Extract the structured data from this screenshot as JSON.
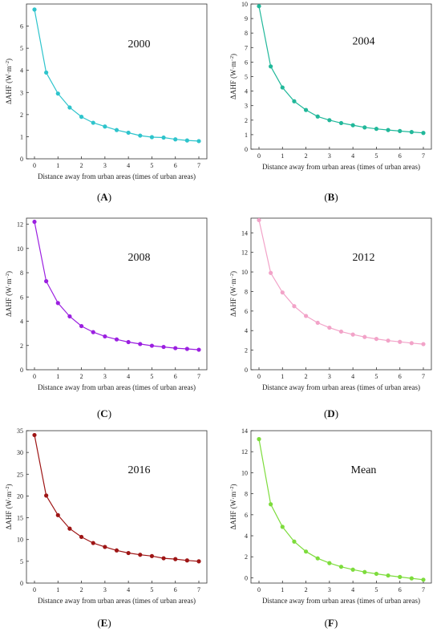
{
  "figure": {
    "ylabel_main": "ΔAHF (W·m",
    "ylabel_sup": "−2",
    "ylabel_close": ")"
  },
  "chart_data": [
    {
      "type": "line",
      "panel_label": "A",
      "annotation": "2000",
      "xlabel": "Distance away from urban areas (times of urban areas)",
      "ylabel": "ΔAHF (W·m−2)",
      "color": "#2ec4cc",
      "xlim": [
        0,
        7
      ],
      "ylim": [
        0,
        7
      ],
      "yticks": [
        0,
        1,
        2,
        3,
        4,
        5,
        6
      ],
      "xticks": [
        0,
        1,
        2,
        3,
        4,
        5,
        6,
        7
      ],
      "grid": false,
      "x": [
        0,
        0.5,
        1,
        1.5,
        2,
        2.5,
        3,
        3.5,
        4,
        4.5,
        5,
        5.5,
        6,
        6.5,
        7
      ],
      "y": [
        6.75,
        3.9,
        2.95,
        2.32,
        1.9,
        1.63,
        1.46,
        1.3,
        1.18,
        1.05,
        0.98,
        0.96,
        0.88,
        0.83,
        0.8
      ]
    },
    {
      "type": "line",
      "panel_label": "B",
      "annotation": "2004",
      "xlabel": "Distance away from urban areas (times of urban areas)",
      "ylabel": "ΔAHF (W·m−2)",
      "color": "#21b89a",
      "xlim": [
        0,
        7
      ],
      "ylim": [
        0,
        10
      ],
      "yticks": [
        0,
        1,
        2,
        3,
        4,
        5,
        6,
        7,
        8,
        9,
        10
      ],
      "xticks": [
        0,
        1,
        2,
        3,
        4,
        5,
        6,
        7
      ],
      "grid": false,
      "x": [
        0,
        0.5,
        1,
        1.5,
        2,
        2.5,
        3,
        3.5,
        4,
        4.5,
        5,
        5.5,
        6,
        6.5,
        7
      ],
      "y": [
        9.85,
        5.7,
        4.25,
        3.3,
        2.7,
        2.25,
        2.0,
        1.8,
        1.65,
        1.5,
        1.4,
        1.32,
        1.25,
        1.18,
        1.12
      ]
    },
    {
      "type": "line",
      "panel_label": "C",
      "annotation": "2008",
      "xlabel": "Distance away from urban areas (times of urban areas)",
      "ylabel": "ΔAHF (W·m−2)",
      "color": "#9b1fe0",
      "xlim": [
        0,
        7
      ],
      "ylim": [
        0,
        12.5
      ],
      "yticks": [
        0,
        2,
        4,
        6,
        8,
        10,
        12
      ],
      "xticks": [
        0,
        1,
        2,
        3,
        4,
        5,
        6,
        7
      ],
      "grid": false,
      "x": [
        0,
        0.5,
        1,
        1.5,
        2,
        2.5,
        3,
        3.5,
        4,
        4.5,
        5,
        5.5,
        6,
        6.5,
        7
      ],
      "y": [
        12.2,
        7.3,
        5.5,
        4.4,
        3.6,
        3.1,
        2.75,
        2.5,
        2.28,
        2.12,
        1.98,
        1.88,
        1.78,
        1.72,
        1.65
      ]
    },
    {
      "type": "line",
      "panel_label": "D",
      "annotation": "2012",
      "xlabel": "Distance away from urban areas (times of urban areas)",
      "ylabel": "ΔAHF (W·m−2)",
      "color": "#f2a3c8",
      "xlim": [
        0,
        7
      ],
      "ylim": [
        0,
        15.5
      ],
      "yticks": [
        0,
        2,
        4,
        6,
        8,
        10,
        12,
        14
      ],
      "xticks": [
        0,
        1,
        2,
        3,
        4,
        5,
        6,
        7
      ],
      "grid": false,
      "x": [
        0,
        0.5,
        1,
        1.5,
        2,
        2.5,
        3,
        3.5,
        4,
        4.5,
        5,
        5.5,
        6,
        6.5,
        7
      ],
      "y": [
        15.3,
        9.9,
        7.9,
        6.5,
        5.5,
        4.8,
        4.3,
        3.9,
        3.6,
        3.35,
        3.15,
        2.98,
        2.85,
        2.72,
        2.62
      ]
    },
    {
      "type": "line",
      "panel_label": "E",
      "annotation": "2016",
      "xlabel": "Distance away from urban areas (times of urban areas)",
      "ylabel": "ΔAHF (W·m−2)",
      "color": "#9e1515",
      "xlim": [
        0,
        7
      ],
      "ylim": [
        0,
        35
      ],
      "yticks": [
        0,
        5,
        10,
        15,
        20,
        25,
        30,
        35
      ],
      "xticks": [
        0,
        1,
        2,
        3,
        4,
        5,
        6,
        7
      ],
      "grid": false,
      "x": [
        0,
        0.5,
        1,
        1.5,
        2,
        2.5,
        3,
        3.5,
        4,
        4.5,
        5,
        5.5,
        6,
        6.5,
        7
      ],
      "y": [
        34.0,
        20.1,
        15.6,
        12.5,
        10.6,
        9.2,
        8.3,
        7.5,
        6.9,
        6.5,
        6.2,
        5.7,
        5.5,
        5.2,
        5.0
      ]
    },
    {
      "type": "line",
      "panel_label": "F",
      "annotation": "Mean",
      "xlabel": "Distance away from urban areas (times of urban areas)",
      "ylabel": "ΔAHF (W·m−2)",
      "color": "#7ddc3c",
      "xlim": [
        0,
        7
      ],
      "ylim": [
        -0.5,
        14
      ],
      "yticks": [
        0,
        2,
        4,
        6,
        8,
        10,
        12,
        14
      ],
      "xticks": [
        0,
        1,
        2,
        3,
        4,
        5,
        6,
        7
      ],
      "grid": false,
      "x": [
        0,
        0.5,
        1,
        1.5,
        2,
        2.5,
        3,
        3.5,
        4,
        4.5,
        5,
        5.5,
        6,
        6.5,
        7
      ],
      "y": [
        13.2,
        7.0,
        4.85,
        3.45,
        2.5,
        1.85,
        1.4,
        1.05,
        0.78,
        0.55,
        0.38,
        0.22,
        0.08,
        -0.05,
        -0.18
      ]
    }
  ]
}
